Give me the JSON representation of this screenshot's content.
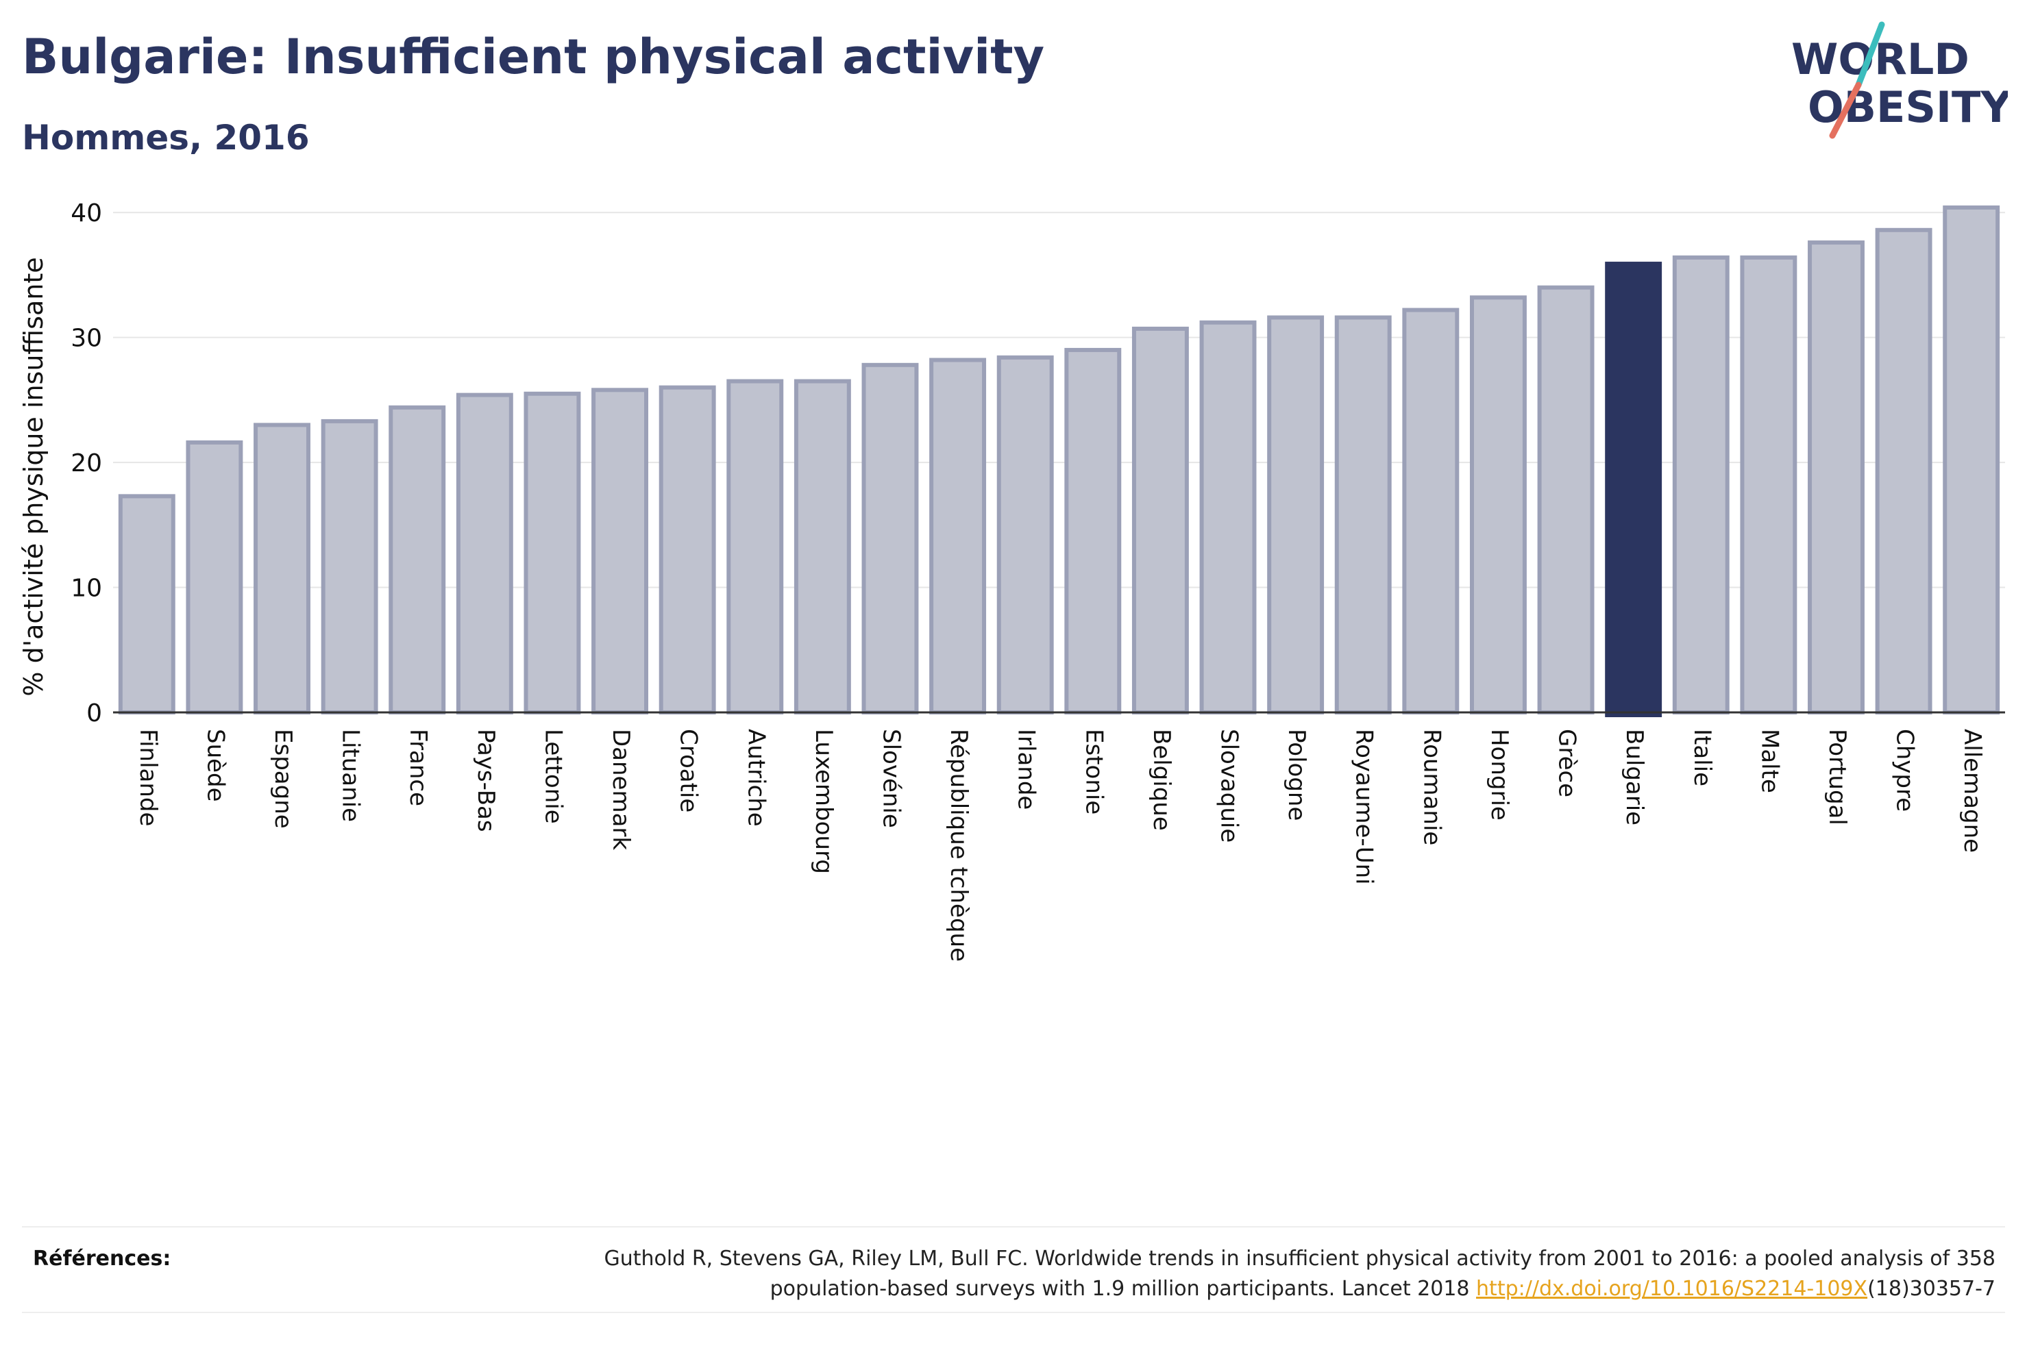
{
  "title": "Bulgarie: Insufficient physical activity",
  "subtitle": "Hommes, 2016",
  "logo": {
    "line1": "WORLD",
    "line2": "OBESITY",
    "accent_colors": [
      "#3cbdbd",
      "#e4705f"
    ]
  },
  "references": {
    "label": "Références:",
    "text_line1": "Guthold R, Stevens GA, Riley LM, Bull FC. Worldwide trends in insufficient physical activity from 2001 to 2016: a pooled analysis of 358",
    "text_line2_before": "population-based surveys with 1.9 million participants. Lancet 2018 ",
    "link": "http://dx.doi.org/10.1016/S2214-109X",
    "text_line2_after": "(18)30357-7"
  },
  "colors": {
    "bar": "#bfc2cf",
    "bar_border": "#9ba0b7",
    "highlight": "#2b3560",
    "text": "#2b3560"
  },
  "chart_data": {
    "type": "bar",
    "ylabel": "% d'activité physique insuffisante",
    "ylim": [
      0,
      41
    ],
    "yticks": [
      0,
      10,
      20,
      30,
      40
    ],
    "grid": true,
    "highlight": "Bulgarie",
    "categories": [
      "Finlande",
      "Suède",
      "Espagne",
      "Lituanie",
      "France",
      "Pays-Bas",
      "Lettonie",
      "Danemark",
      "Croatie",
      "Autriche",
      "Luxembourg",
      "Slovénie",
      "République tchèque",
      "Irlande",
      "Estonie",
      "Belgique",
      "Slovaquie",
      "Pologne",
      "Royaume-Uni",
      "Roumanie",
      "Hongrie",
      "Grèce",
      "Bulgarie",
      "Italie",
      "Malte",
      "Portugal",
      "Chypre",
      "Allemagne"
    ],
    "values": [
      17.3,
      21.6,
      23.0,
      23.3,
      24.4,
      25.4,
      25.5,
      25.8,
      26.0,
      26.5,
      26.5,
      27.8,
      28.2,
      28.4,
      29.0,
      30.7,
      31.2,
      31.6,
      31.6,
      32.2,
      33.2,
      34.0,
      35.9,
      36.4,
      36.4,
      37.6,
      38.6,
      40.4
    ]
  }
}
